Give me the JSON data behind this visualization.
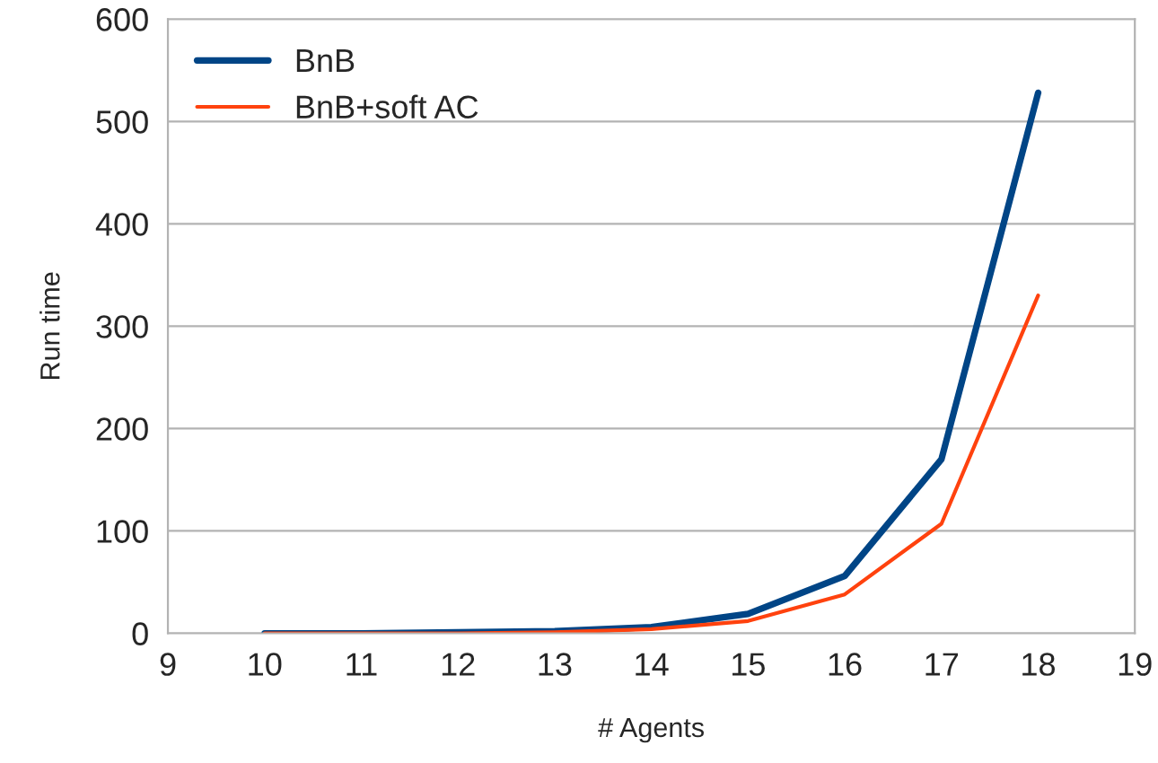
{
  "chart_data": {
    "type": "line",
    "xlabel": "# Agents",
    "ylabel": "Run time",
    "x": [
      10,
      11,
      12,
      13,
      14,
      15,
      16,
      17,
      18
    ],
    "series": [
      {
        "name": "BnB",
        "color": "#004586",
        "values": [
          0,
          0,
          1,
          2,
          6,
          19,
          56,
          170,
          528
        ]
      },
      {
        "name": "BnB+soft AC",
        "color": "#ff420e",
        "values": [
          0,
          0,
          0,
          1,
          4,
          12,
          38,
          107,
          330
        ]
      }
    ],
    "xlim": [
      9,
      19
    ],
    "xticks": [
      9,
      10,
      11,
      12,
      13,
      14,
      15,
      16,
      17,
      18,
      19
    ],
    "ylim": [
      0,
      600
    ],
    "yticks": [
      0,
      100,
      200,
      300,
      400,
      500,
      600
    ],
    "grid": "y",
    "legend": "top left",
    "marker": "none",
    "line_style": "solid"
  }
}
